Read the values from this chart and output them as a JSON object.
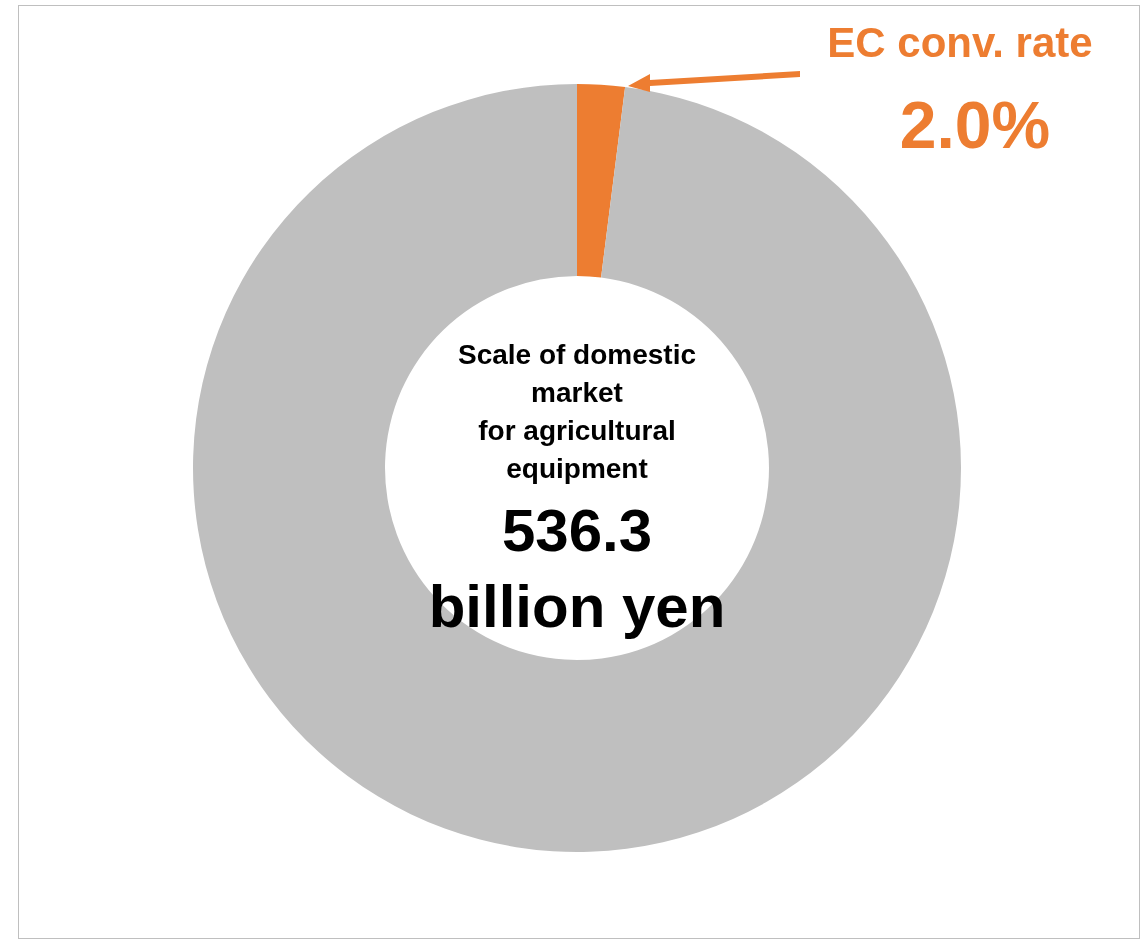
{
  "chart_data": {
    "type": "donut",
    "categories": [
      null,
      null
    ],
    "values": [
      2.0,
      98.0
    ],
    "colors": [
      "#ed7d31",
      "#bfbfbf"
    ],
    "legend": false,
    "annotations": [
      "Scale of domestic\nmarket\nfor agricultural\nequipment",
      "536.3\nbillion yen",
      "EC conv. rate",
      "2.0%"
    ]
  }
}
